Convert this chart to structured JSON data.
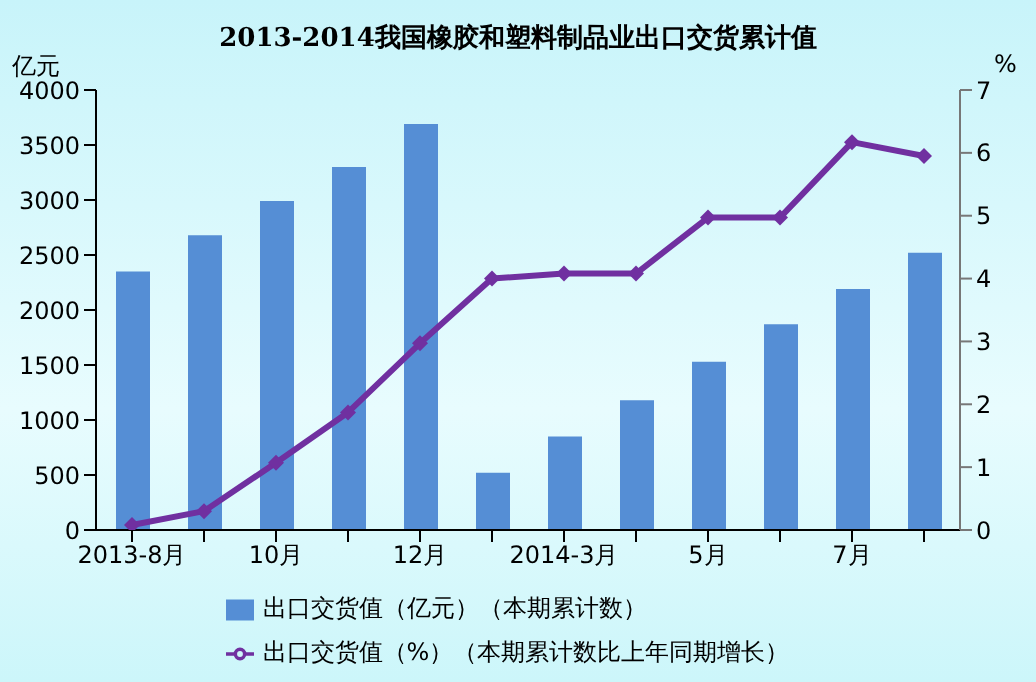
{
  "chart_data": {
    "type": "bar",
    "title": "2013-2014我国橡胶和塑料制品业出口交货累计值",
    "ylabel": "亿元",
    "y2label": "%",
    "categories": [
      "2013-8月",
      null,
      "10月",
      null,
      "12月",
      null,
      "2014-3月",
      null,
      "5月",
      null,
      "7月",
      null
    ],
    "series": [
      {
        "name": "出口交货值（亿元）（本期累计数）",
        "color": "#558ed5",
        "values": [
          2350,
          2680,
          2990,
          3300,
          3690,
          520,
          850,
          1180,
          1530,
          1870,
          2190,
          2520
        ]
      },
      {
        "name": "出口交货值（%）（本期累计数比上年同期增长）",
        "type": "line",
        "axis": "y2",
        "color": "#7030a0",
        "marker": "diamond",
        "values": [
          0.08,
          0.3,
          1.07,
          1.87,
          2.97,
          4.0,
          4.08,
          4.08,
          4.97,
          4.97,
          6.17,
          5.95
        ]
      }
    ],
    "ylim": [
      0,
      4000
    ],
    "yticks": [
      0,
      500,
      1000,
      1500,
      2000,
      2500,
      3000,
      3500,
      4000
    ],
    "y2lim": [
      0,
      7
    ],
    "y2ticks": [
      0,
      1,
      2,
      3,
      4,
      5,
      6,
      7
    ],
    "legend": "bottom"
  }
}
